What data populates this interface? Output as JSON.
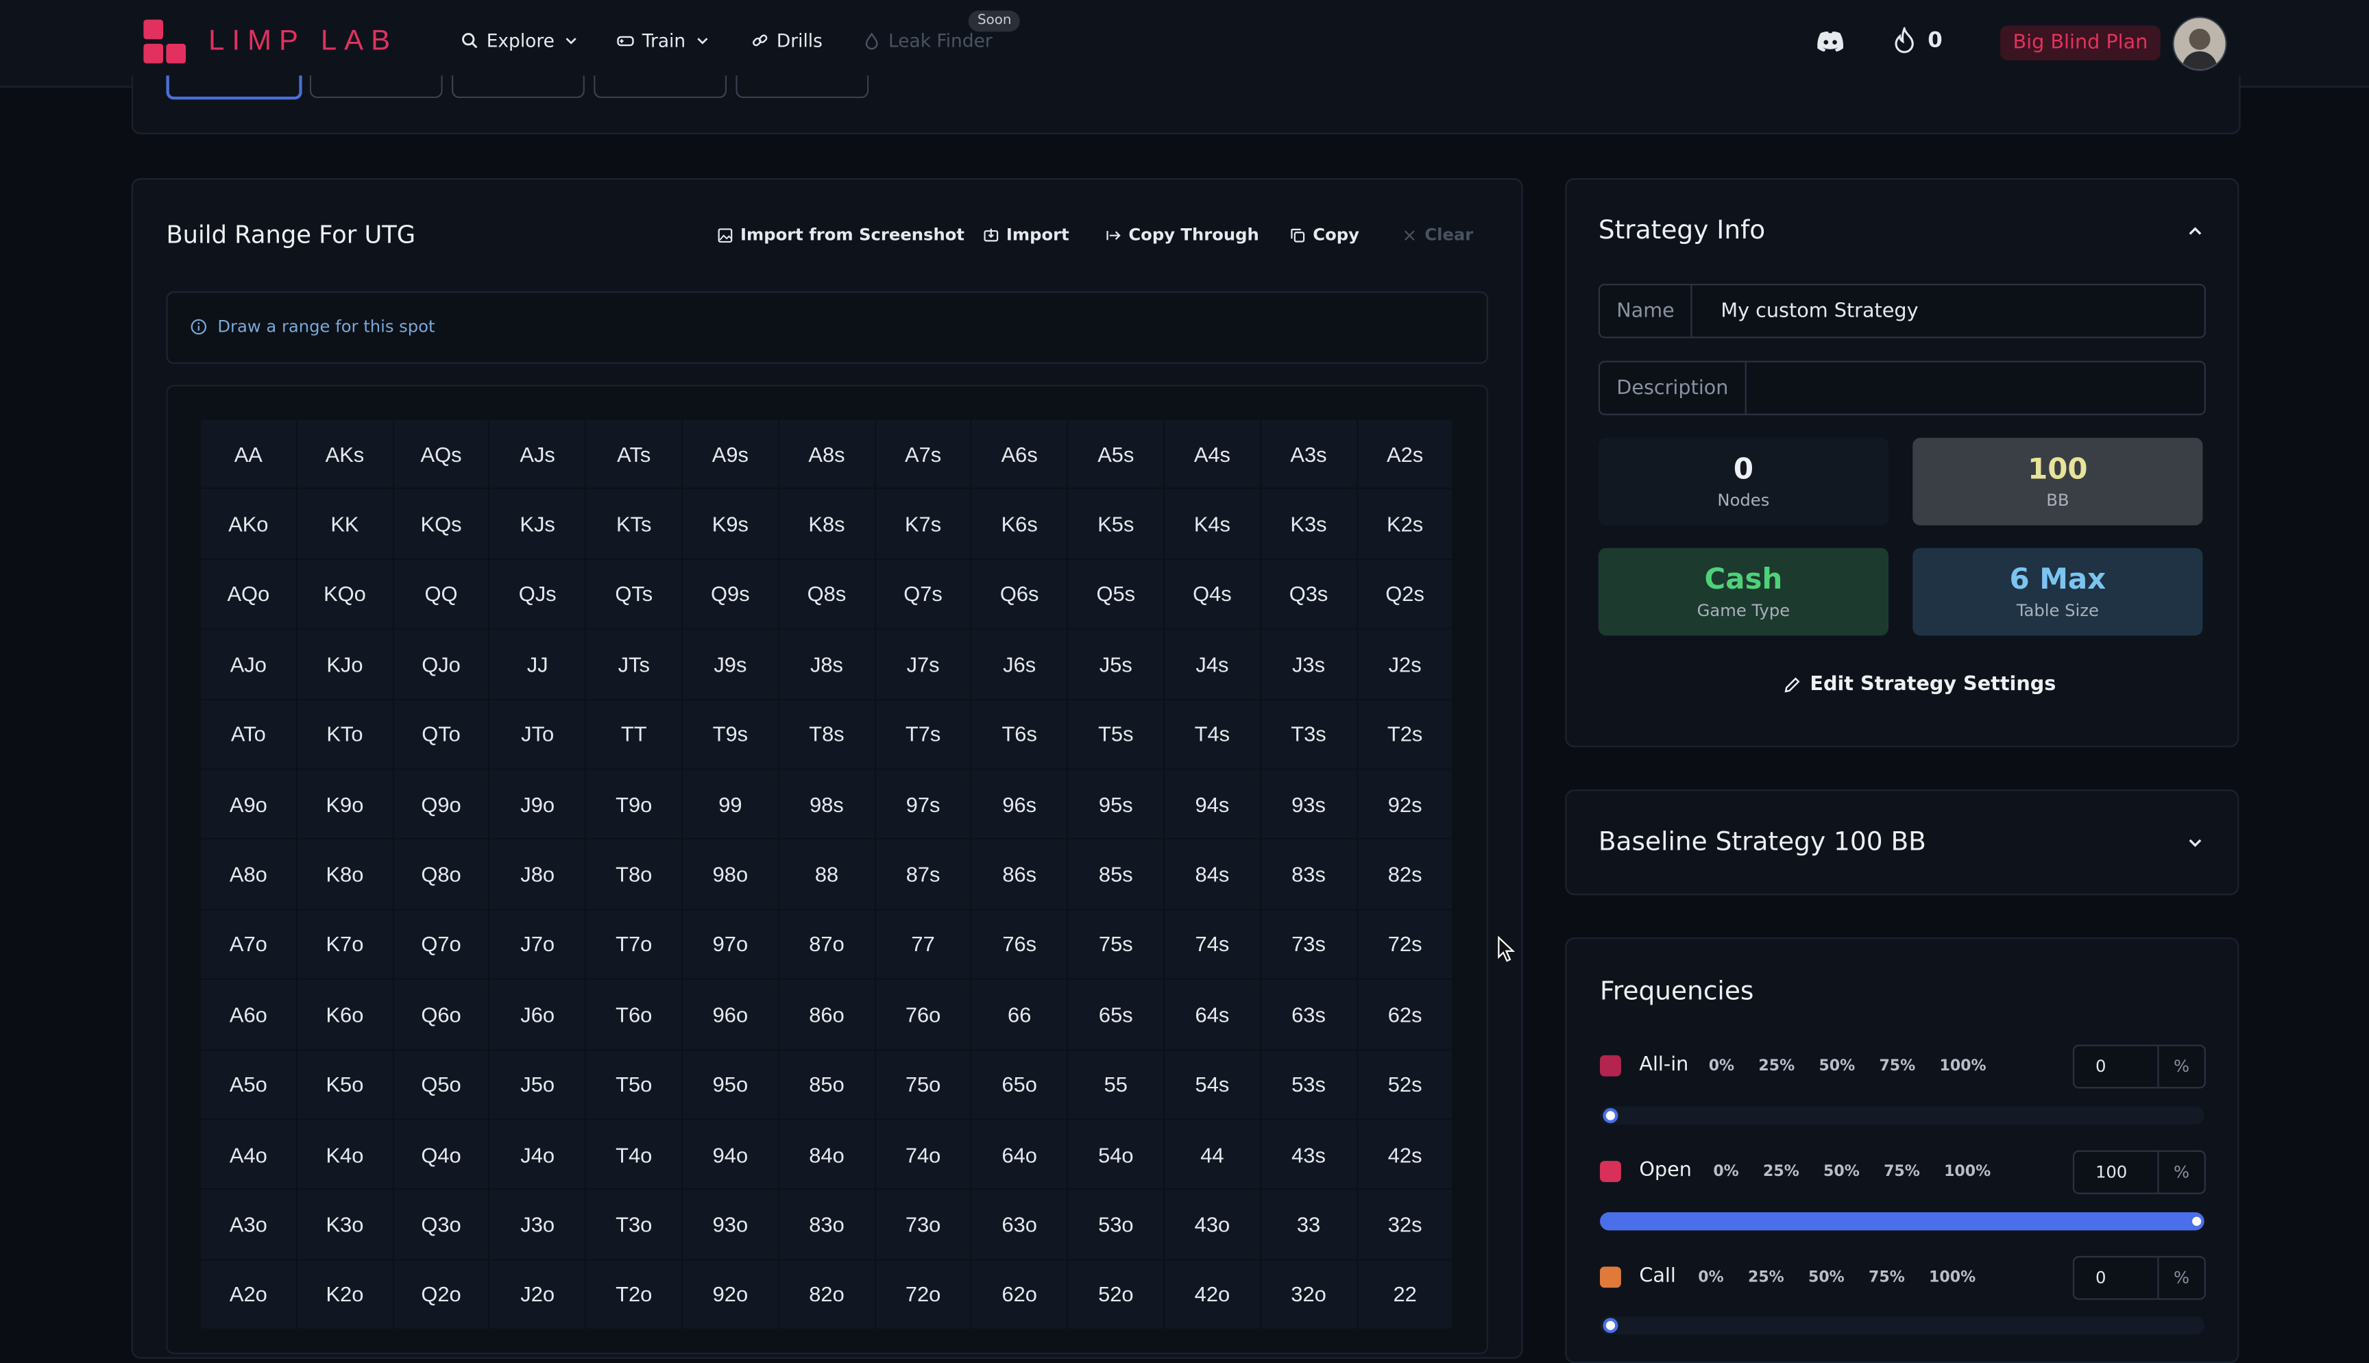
{
  "nav": {
    "logo_text": "LIMP LAB",
    "items": [
      {
        "label": "Explore",
        "icon": "search-icon",
        "has_dropdown": true
      },
      {
        "label": "Train",
        "icon": "gamepad-icon",
        "has_dropdown": true
      },
      {
        "label": "Drills",
        "icon": "link-icon",
        "has_dropdown": false
      },
      {
        "label": "Leak Finder",
        "icon": "droplet-icon",
        "disabled": true
      }
    ],
    "soon_badge": "Soon",
    "streak_count": "0",
    "plan_button": "Big Blind Plan"
  },
  "range_builder": {
    "title": "Build Range For UTG",
    "toolbar": {
      "import_screenshot": "Import from Screenshot",
      "import": "Import",
      "copy_through": "Copy Through",
      "copy": "Copy",
      "clear": "Clear"
    },
    "info": "Draw a range for this spot",
    "hands": [
      [
        "AA",
        "AKs",
        "AQs",
        "AJs",
        "ATs",
        "A9s",
        "A8s",
        "A7s",
        "A6s",
        "A5s",
        "A4s",
        "A3s",
        "A2s"
      ],
      [
        "AKo",
        "KK",
        "KQs",
        "KJs",
        "KTs",
        "K9s",
        "K8s",
        "K7s",
        "K6s",
        "K5s",
        "K4s",
        "K3s",
        "K2s"
      ],
      [
        "AQo",
        "KQo",
        "QQ",
        "QJs",
        "QTs",
        "Q9s",
        "Q8s",
        "Q7s",
        "Q6s",
        "Q5s",
        "Q4s",
        "Q3s",
        "Q2s"
      ],
      [
        "AJo",
        "KJo",
        "QJo",
        "JJ",
        "JTs",
        "J9s",
        "J8s",
        "J7s",
        "J6s",
        "J5s",
        "J4s",
        "J3s",
        "J2s"
      ],
      [
        "ATo",
        "KTo",
        "QTo",
        "JTo",
        "TT",
        "T9s",
        "T8s",
        "T7s",
        "T6s",
        "T5s",
        "T4s",
        "T3s",
        "T2s"
      ],
      [
        "A9o",
        "K9o",
        "Q9o",
        "J9o",
        "T9o",
        "99",
        "98s",
        "97s",
        "96s",
        "95s",
        "94s",
        "93s",
        "92s"
      ],
      [
        "A8o",
        "K8o",
        "Q8o",
        "J8o",
        "T8o",
        "98o",
        "88",
        "87s",
        "86s",
        "85s",
        "84s",
        "83s",
        "82s"
      ],
      [
        "A7o",
        "K7o",
        "Q7o",
        "J7o",
        "T7o",
        "97o",
        "87o",
        "77",
        "76s",
        "75s",
        "74s",
        "73s",
        "72s"
      ],
      [
        "A6o",
        "K6o",
        "Q6o",
        "J6o",
        "T6o",
        "96o",
        "86o",
        "76o",
        "66",
        "65s",
        "64s",
        "63s",
        "62s"
      ],
      [
        "A5o",
        "K5o",
        "Q5o",
        "J5o",
        "T5o",
        "95o",
        "85o",
        "75o",
        "65o",
        "55",
        "54s",
        "53s",
        "52s"
      ],
      [
        "A4o",
        "K4o",
        "Q4o",
        "J4o",
        "T4o",
        "94o",
        "84o",
        "74o",
        "64o",
        "54o",
        "44",
        "43s",
        "42s"
      ],
      [
        "A3o",
        "K3o",
        "Q3o",
        "J3o",
        "T3o",
        "93o",
        "83o",
        "73o",
        "63o",
        "53o",
        "43o",
        "33",
        "32s"
      ],
      [
        "A2o",
        "K2o",
        "Q2o",
        "J2o",
        "T2o",
        "92o",
        "82o",
        "72o",
        "62o",
        "52o",
        "42o",
        "32o",
        "22"
      ]
    ]
  },
  "strategy_info": {
    "title": "Strategy Info",
    "name_label": "Name",
    "name_value": "My custom Strategy",
    "description_label": "Description",
    "description_value": "",
    "nodes_value": "0",
    "nodes_label": "Nodes",
    "bb_value": "100",
    "bb_label": "BB",
    "game_type_value": "Cash",
    "game_type_label": "Game Type",
    "table_size_value": "6 Max",
    "table_size_label": "Table Size",
    "edit_link": "Edit Strategy Settings"
  },
  "baseline": {
    "title": "Baseline Strategy 100 BB"
  },
  "frequencies": {
    "title": "Frequencies",
    "presets": [
      "0%",
      "25%",
      "50%",
      "75%",
      "100%"
    ],
    "unit": "%",
    "rows": [
      {
        "label": "All-in",
        "value": "0",
        "color": "#b3244e",
        "fraction": 0
      },
      {
        "label": "Open",
        "value": "100",
        "color": "#d9305a",
        "fraction": 1
      },
      {
        "label": "Call",
        "value": "0",
        "color": "#e07a3a",
        "fraction": 0
      }
    ]
  },
  "colors": {
    "brand": "#e3315f",
    "accent": "#4b6fe8",
    "cash_green": "#4fd17a",
    "table_blue": "#7cc4f0",
    "bb_yellow": "#e8e39a"
  }
}
